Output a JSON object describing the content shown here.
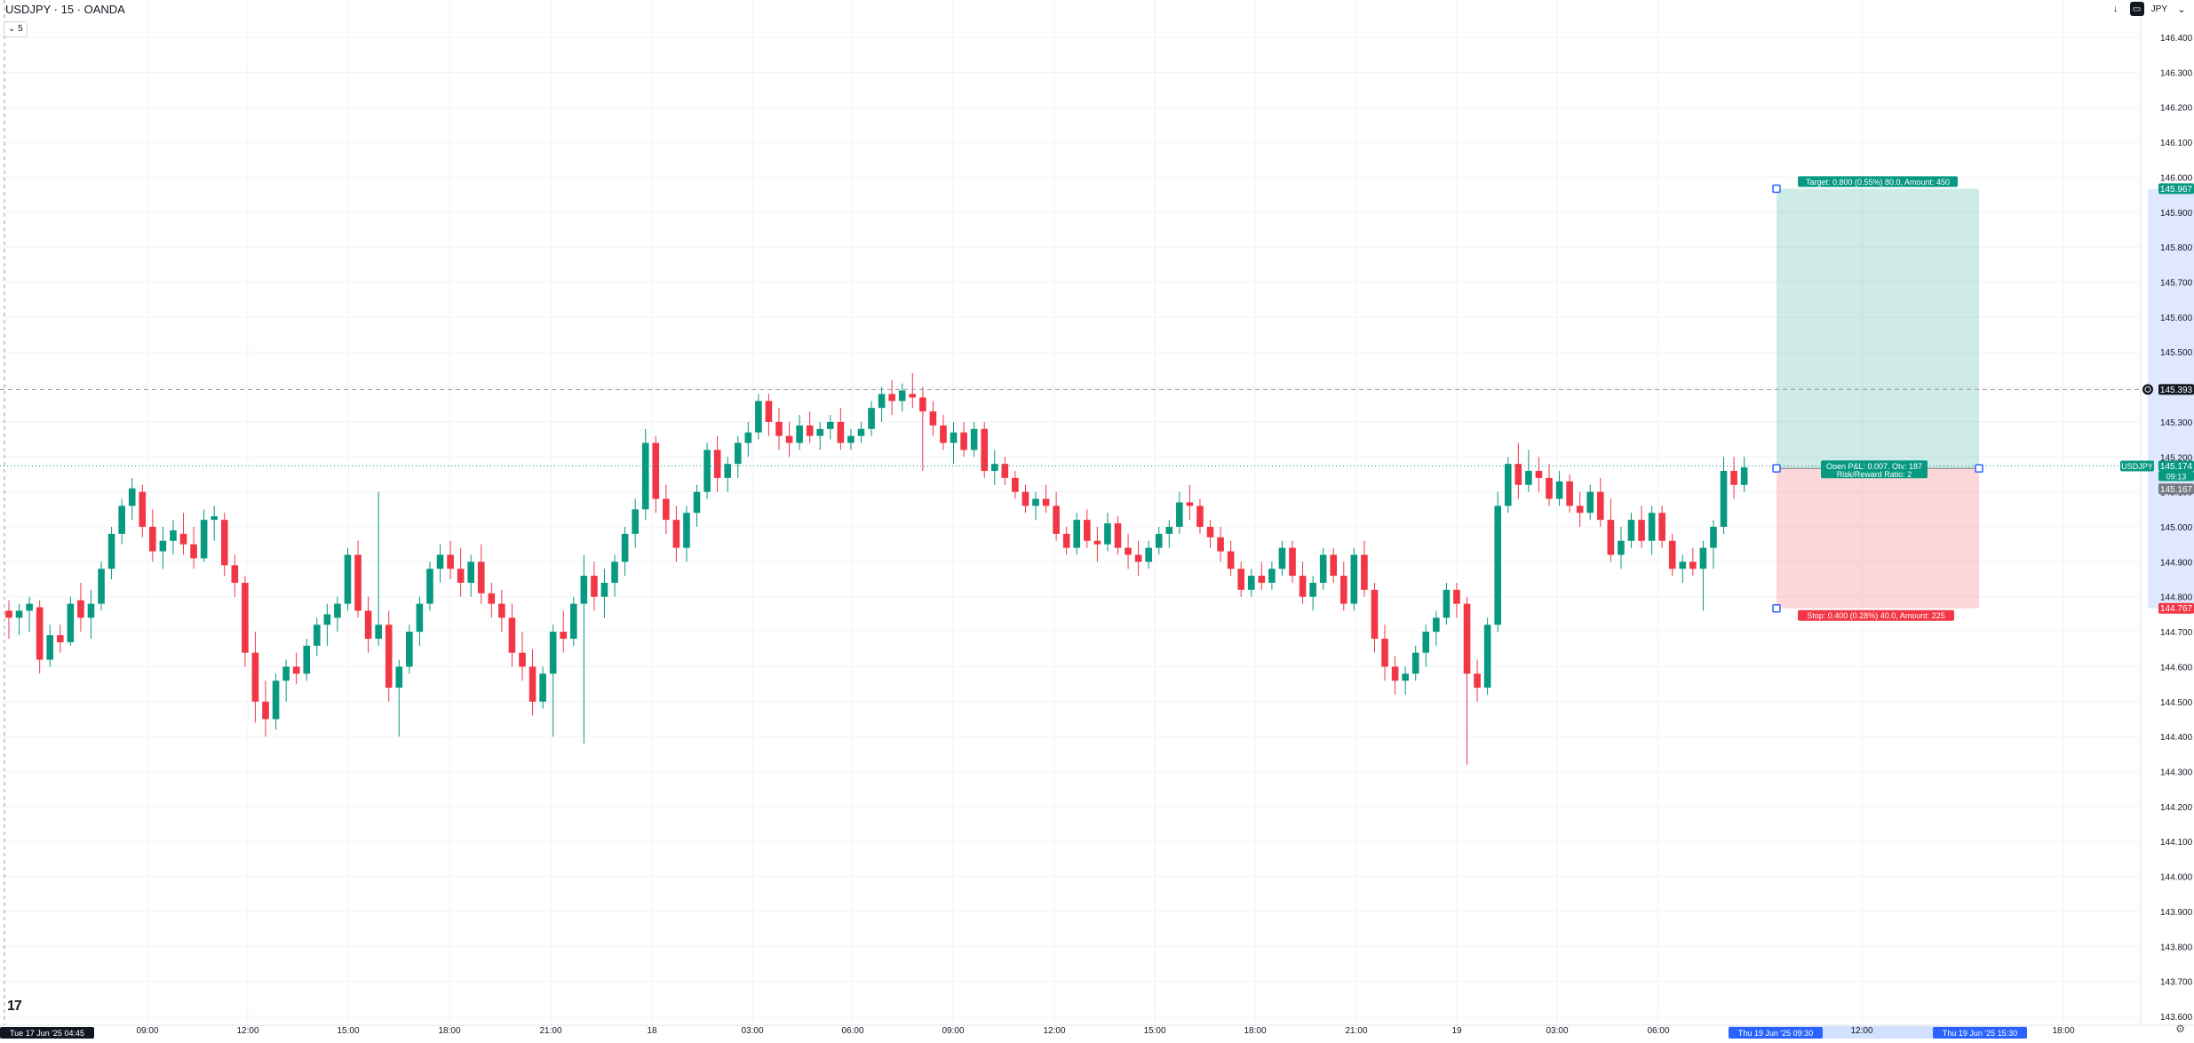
{
  "header": {
    "title": "USDJPY · 15 · OANDA",
    "collapse_label": "⌄ 5",
    "currency": "JPY",
    "icons": [
      "arrow-down-icon",
      "indicator-icon",
      "chevron-down-icon"
    ]
  },
  "colors": {
    "up": "#089981",
    "down": "#f23645",
    "grid": "#f0f3fa",
    "target_zone": "rgba(8,153,129,0.2)",
    "stop_zone": "rgba(242,54,69,0.2)",
    "crosshair": "#9598a1"
  },
  "price_axis": {
    "ticks": [
      "146.400",
      "146.300",
      "146.200",
      "146.100",
      "146.000",
      "145.900",
      "145.800",
      "145.700",
      "145.600",
      "145.500",
      "145.400",
      "145.300",
      "145.200",
      "145.100",
      "145.000",
      "144.900",
      "144.800",
      "144.700",
      "144.600",
      "144.500",
      "144.400",
      "144.300",
      "144.200",
      "144.100",
      "144.000",
      "143.900",
      "143.800",
      "143.700",
      "143.600"
    ],
    "min": 143.6,
    "max": 146.4,
    "labels": {
      "target": "145.967",
      "crosshair": "145.393",
      "symbol_name": "USDJPY",
      "current": "145.174",
      "countdown": "09:13",
      "entry": "145.167",
      "stop": "144.767"
    }
  },
  "time_axis": {
    "ticks": [
      "09:00",
      "12:00",
      "15:00",
      "18:00",
      "21:00",
      "18",
      "03:00",
      "06:00",
      "09:00",
      "12:00",
      "15:00",
      "18:00",
      "21:00",
      "19",
      "03:00",
      "06:00",
      "12:00",
      "18:00"
    ],
    "start_label": "Tue 17 Jun '25   04:45",
    "range_start": "Thu 19 Jun '25   09:30",
    "range_end": "Thu 19 Jun '25   15:30"
  },
  "position": {
    "target_label": "Target: 0.800 (0.55%) 80.0, Amount: 450",
    "open_label": "Open P&L: 0.007, Qty: 187",
    "ratio_label": "Risk/Reward Ratio: 2",
    "stop_label": "Stop: 0.400 (0.28%) 40.0, Amount: 225",
    "target_price": 145.967,
    "entry_price": 145.167,
    "stop_price": 144.767
  },
  "chart_data": {
    "type": "candlestick",
    "symbol": "USDJPY",
    "interval": "15",
    "source": "OANDA",
    "ylim": [
      143.6,
      146.4
    ],
    "candles": [
      [
        144.76,
        144.79,
        144.68,
        144.74
      ],
      [
        144.74,
        144.78,
        144.69,
        144.76
      ],
      [
        144.76,
        144.8,
        144.7,
        144.78
      ],
      [
        144.77,
        144.79,
        144.58,
        144.62
      ],
      [
        144.62,
        144.72,
        144.6,
        144.69
      ],
      [
        144.69,
        144.72,
        144.64,
        144.67
      ],
      [
        144.67,
        144.8,
        144.66,
        144.78
      ],
      [
        144.79,
        144.84,
        144.7,
        144.74
      ],
      [
        144.74,
        144.82,
        144.68,
        144.78
      ],
      [
        144.78,
        144.9,
        144.76,
        144.88
      ],
      [
        144.88,
        145.0,
        144.85,
        144.98
      ],
      [
        144.98,
        145.08,
        144.95,
        145.06
      ],
      [
        145.06,
        145.14,
        145.02,
        145.11
      ],
      [
        145.1,
        145.12,
        144.97,
        145.0
      ],
      [
        145.0,
        145.05,
        144.9,
        144.93
      ],
      [
        144.93,
        145.0,
        144.88,
        144.96
      ],
      [
        144.96,
        145.02,
        144.92,
        144.99
      ],
      [
        144.98,
        145.04,
        144.92,
        144.95
      ],
      [
        144.95,
        145.0,
        144.88,
        144.91
      ],
      [
        144.91,
        145.05,
        144.9,
        145.02
      ],
      [
        145.02,
        145.06,
        144.96,
        145.03
      ],
      [
        145.02,
        145.04,
        144.86,
        144.89
      ],
      [
        144.89,
        144.92,
        144.8,
        144.84
      ],
      [
        144.84,
        144.86,
        144.6,
        144.64
      ],
      [
        144.64,
        144.7,
        144.44,
        144.5
      ],
      [
        144.5,
        144.56,
        144.4,
        144.45
      ],
      [
        144.45,
        144.58,
        144.42,
        144.56
      ],
      [
        144.56,
        144.62,
        144.5,
        144.6
      ],
      [
        144.6,
        144.64,
        144.55,
        144.58
      ],
      [
        144.58,
        144.68,
        144.56,
        144.66
      ],
      [
        144.66,
        144.74,
        144.63,
        144.72
      ],
      [
        144.72,
        144.78,
        144.66,
        144.75
      ],
      [
        144.74,
        144.8,
        144.7,
        144.78
      ],
      [
        144.78,
        144.94,
        144.76,
        144.92
      ],
      [
        144.92,
        144.96,
        144.74,
        144.76
      ],
      [
        144.76,
        144.8,
        144.64,
        144.68
      ],
      [
        144.68,
        145.1,
        144.66,
        144.72
      ],
      [
        144.72,
        144.76,
        144.5,
        144.54
      ],
      [
        144.54,
        144.62,
        144.4,
        144.6
      ],
      [
        144.6,
        144.72,
        144.58,
        144.7
      ],
      [
        144.7,
        144.8,
        144.66,
        144.78
      ],
      [
        144.78,
        144.9,
        144.76,
        144.88
      ],
      [
        144.88,
        144.95,
        144.84,
        144.92
      ],
      [
        144.92,
        144.96,
        144.85,
        144.88
      ],
      [
        144.88,
        144.94,
        144.8,
        144.84
      ],
      [
        144.84,
        144.92,
        144.8,
        144.9
      ],
      [
        144.9,
        144.95,
        144.78,
        144.81
      ],
      [
        144.81,
        144.84,
        144.74,
        144.78
      ],
      [
        144.78,
        144.82,
        144.7,
        144.74
      ],
      [
        144.74,
        144.78,
        144.6,
        144.64
      ],
      [
        144.64,
        144.7,
        144.56,
        144.6
      ],
      [
        144.6,
        144.65,
        144.46,
        144.5
      ],
      [
        144.5,
        144.6,
        144.48,
        144.58
      ],
      [
        144.58,
        144.72,
        144.4,
        144.7
      ],
      [
        144.7,
        144.76,
        144.64,
        144.68
      ],
      [
        144.68,
        144.8,
        144.66,
        144.78
      ],
      [
        144.78,
        144.92,
        144.38,
        144.86
      ],
      [
        144.86,
        144.9,
        144.76,
        144.8
      ],
      [
        144.8,
        144.88,
        144.74,
        144.84
      ],
      [
        144.84,
        144.92,
        144.8,
        144.9
      ],
      [
        144.9,
        145.0,
        144.86,
        144.98
      ],
      [
        144.98,
        145.08,
        144.94,
        145.05
      ],
      [
        145.05,
        145.28,
        145.02,
        145.24
      ],
      [
        145.24,
        145.26,
        145.04,
        145.08
      ],
      [
        145.08,
        145.12,
        144.98,
        145.02
      ],
      [
        145.02,
        145.06,
        144.9,
        144.94
      ],
      [
        144.94,
        145.06,
        144.9,
        145.04
      ],
      [
        145.04,
        145.12,
        145.0,
        145.1
      ],
      [
        145.1,
        145.24,
        145.08,
        145.22
      ],
      [
        145.22,
        145.26,
        145.1,
        145.14
      ],
      [
        145.14,
        145.2,
        145.1,
        145.18
      ],
      [
        145.18,
        145.26,
        145.14,
        145.24
      ],
      [
        145.24,
        145.3,
        145.2,
        145.27
      ],
      [
        145.27,
        145.38,
        145.25,
        145.36
      ],
      [
        145.36,
        145.38,
        145.26,
        145.3
      ],
      [
        145.3,
        145.34,
        145.22,
        145.26
      ],
      [
        145.26,
        145.3,
        145.2,
        145.24
      ],
      [
        145.24,
        145.32,
        145.22,
        145.29
      ],
      [
        145.29,
        145.33,
        145.24,
        145.26
      ],
      [
        145.26,
        145.3,
        145.22,
        145.28
      ],
      [
        145.28,
        145.32,
        145.25,
        145.3
      ],
      [
        145.3,
        145.34,
        145.22,
        145.24
      ],
      [
        145.24,
        145.28,
        145.22,
        145.26
      ],
      [
        145.26,
        145.3,
        145.24,
        145.28
      ],
      [
        145.28,
        145.36,
        145.26,
        145.34
      ],
      [
        145.34,
        145.4,
        145.3,
        145.38
      ],
      [
        145.38,
        145.42,
        145.32,
        145.36
      ],
      [
        145.36,
        145.41,
        145.33,
        145.39
      ],
      [
        145.38,
        145.44,
        145.34,
        145.37
      ],
      [
        145.37,
        145.4,
        145.16,
        145.33
      ],
      [
        145.33,
        145.36,
        145.26,
        145.29
      ],
      [
        145.29,
        145.32,
        145.22,
        145.24
      ],
      [
        145.24,
        145.3,
        145.18,
        145.27
      ],
      [
        145.27,
        145.3,
        145.2,
        145.22
      ],
      [
        145.22,
        145.3,
        145.2,
        145.28
      ],
      [
        145.28,
        145.3,
        145.14,
        145.16
      ],
      [
        145.16,
        145.22,
        145.12,
        145.18
      ],
      [
        145.18,
        145.2,
        145.12,
        145.14
      ],
      [
        145.14,
        145.16,
        145.08,
        145.1
      ],
      [
        145.1,
        145.12,
        145.04,
        145.06
      ],
      [
        145.06,
        145.1,
        145.02,
        145.08
      ],
      [
        145.08,
        145.12,
        145.04,
        145.06
      ],
      [
        145.06,
        145.1,
        144.96,
        144.98
      ],
      [
        144.98,
        145.0,
        144.92,
        144.94
      ],
      [
        144.94,
        145.04,
        144.92,
        145.02
      ],
      [
        145.02,
        145.05,
        144.94,
        144.96
      ],
      [
        144.96,
        145.0,
        144.9,
        144.95
      ],
      [
        144.95,
        145.04,
        144.93,
        145.01
      ],
      [
        145.01,
        145.03,
        144.92,
        144.94
      ],
      [
        144.94,
        144.98,
        144.88,
        144.92
      ],
      [
        144.92,
        144.96,
        144.86,
        144.9
      ],
      [
        144.9,
        144.96,
        144.88,
        144.94
      ],
      [
        144.94,
        145.0,
        144.92,
        144.98
      ],
      [
        144.98,
        145.02,
        144.94,
        145.0
      ],
      [
        145.0,
        145.1,
        144.98,
        145.07
      ],
      [
        145.07,
        145.12,
        145.02,
        145.06
      ],
      [
        145.06,
        145.08,
        144.98,
        145.0
      ],
      [
        145.0,
        145.02,
        144.94,
        144.97
      ],
      [
        144.97,
        145.0,
        144.9,
        144.93
      ],
      [
        144.93,
        144.96,
        144.86,
        144.88
      ],
      [
        144.88,
        144.9,
        144.8,
        144.82
      ],
      [
        144.82,
        144.88,
        144.8,
        144.86
      ],
      [
        144.86,
        144.9,
        144.82,
        144.84
      ],
      [
        144.84,
        144.9,
        144.82,
        144.88
      ],
      [
        144.88,
        144.96,
        144.86,
        144.94
      ],
      [
        144.94,
        144.96,
        144.84,
        144.86
      ],
      [
        144.86,
        144.9,
        144.78,
        144.8
      ],
      [
        144.8,
        144.86,
        144.76,
        144.84
      ],
      [
        144.84,
        144.94,
        144.82,
        144.92
      ],
      [
        144.92,
        144.94,
        144.84,
        144.86
      ],
      [
        144.86,
        144.9,
        144.76,
        144.78
      ],
      [
        144.78,
        144.94,
        144.76,
        144.92
      ],
      [
        144.92,
        144.96,
        144.8,
        144.82
      ],
      [
        144.82,
        144.84,
        144.64,
        144.68
      ],
      [
        144.68,
        144.72,
        144.56,
        144.6
      ],
      [
        144.6,
        144.63,
        144.52,
        144.56
      ],
      [
        144.56,
        144.6,
        144.52,
        144.58
      ],
      [
        144.58,
        144.66,
        144.56,
        144.64
      ],
      [
        144.64,
        144.72,
        144.6,
        144.7
      ],
      [
        144.7,
        144.76,
        144.66,
        144.74
      ],
      [
        144.74,
        144.84,
        144.72,
        144.82
      ],
      [
        144.82,
        144.84,
        144.74,
        144.78
      ],
      [
        144.78,
        144.8,
        144.32,
        144.58
      ],
      [
        144.58,
        144.62,
        144.5,
        144.54
      ],
      [
        144.54,
        144.74,
        144.52,
        144.72
      ],
      [
        144.72,
        145.1,
        144.7,
        145.06
      ],
      [
        145.06,
        145.2,
        145.04,
        145.18
      ],
      [
        145.18,
        145.24,
        145.08,
        145.12
      ],
      [
        145.12,
        145.22,
        145.1,
        145.16
      ],
      [
        145.16,
        145.2,
        145.1,
        145.14
      ],
      [
        145.14,
        145.18,
        145.06,
        145.08
      ],
      [
        145.08,
        145.16,
        145.06,
        145.13
      ],
      [
        145.13,
        145.15,
        145.04,
        145.06
      ],
      [
        145.06,
        145.1,
        145.0,
        145.04
      ],
      [
        145.04,
        145.12,
        145.02,
        145.1
      ],
      [
        145.1,
        145.14,
        145.0,
        145.02
      ],
      [
        145.02,
        145.08,
        144.9,
        144.92
      ],
      [
        144.92,
        145.0,
        144.88,
        144.96
      ],
      [
        144.96,
        145.04,
        144.94,
        145.02
      ],
      [
        145.02,
        145.06,
        144.94,
        144.96
      ],
      [
        144.96,
        145.06,
        144.92,
        145.04
      ],
      [
        145.04,
        145.06,
        144.94,
        144.96
      ],
      [
        144.96,
        144.98,
        144.86,
        144.88
      ],
      [
        144.88,
        144.92,
        144.84,
        144.9
      ],
      [
        144.9,
        144.94,
        144.86,
        144.88
      ],
      [
        144.88,
        144.96,
        144.76,
        144.94
      ],
      [
        144.94,
        145.02,
        144.88,
        145.0
      ],
      [
        145.0,
        145.2,
        144.98,
        145.16
      ],
      [
        145.16,
        145.2,
        145.08,
        145.12
      ],
      [
        145.12,
        145.2,
        145.1,
        145.17
      ]
    ]
  }
}
